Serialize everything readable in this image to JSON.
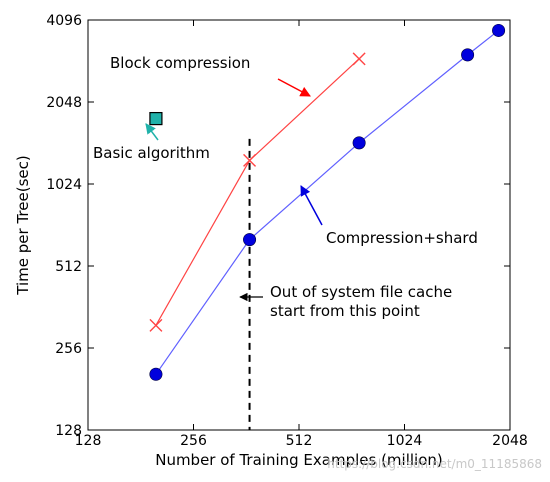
{
  "chart_data": {
    "type": "line",
    "xlabel": "Number of Training Examples (million)",
    "ylabel": "Time per Tree(sec)",
    "xscale": "log2",
    "yscale": "log2",
    "xlim": [
      128,
      2048
    ],
    "ylim": [
      128,
      4096
    ],
    "xticks": [
      128,
      256,
      512,
      1024,
      2048
    ],
    "yticks": [
      128,
      256,
      512,
      1024,
      2048,
      4096
    ],
    "xtick_labels": [
      "128",
      "256",
      "512",
      "1024",
      "2048"
    ],
    "ytick_labels": [
      "128",
      "256",
      "512",
      "1024",
      "2048",
      "4096"
    ],
    "grid": false,
    "legend": "none",
    "series": [
      {
        "name": "Block compression",
        "color": "#ff4444",
        "marker": "x",
        "x": [
          200,
          370,
          760
        ],
        "y": [
          310,
          1250,
          2950
        ]
      },
      {
        "name": "Compression+shard",
        "color": "#0000dd",
        "line_color": "#6060ff",
        "marker": "circle",
        "x": [
          200,
          370,
          760,
          1550,
          1900
        ],
        "y": [
          205,
          640,
          1450,
          3050,
          3750
        ]
      },
      {
        "name": "Basic algorithm",
        "color": "#20b2aa",
        "marker": "square",
        "x": [
          200
        ],
        "y": [
          1780
        ]
      }
    ],
    "vline": {
      "x": 370,
      "style": "dashed",
      "color": "#000000"
    },
    "annotations": [
      {
        "text": "Block compression",
        "color": "#ff0000"
      },
      {
        "text": "Basic algorithm",
        "color": "#20b2aa"
      },
      {
        "text": "Compression+shard",
        "color": "#0000dd"
      },
      {
        "text_lines": [
          "Out of system file cache",
          "start from this point"
        ],
        "color": "#000000"
      }
    ],
    "watermark": "https://blog.csdn.net/m0_11185868"
  }
}
